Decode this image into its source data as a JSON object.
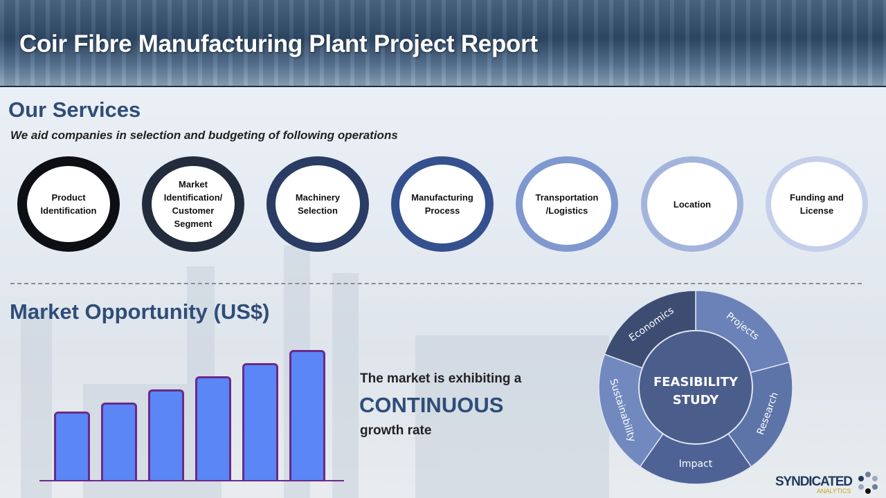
{
  "header": {
    "title": "Coir Fibre Manufacturing Plant Project Report"
  },
  "services": {
    "heading": "Our Services",
    "subtitle": "We aid companies in selection and budgeting of following operations",
    "items": [
      {
        "label": "Product Identification",
        "color": "#0d0f14"
      },
      {
        "label": "Market Identification/ Customer Segment",
        "color": "#232c3c"
      },
      {
        "label": "Machinery Selection",
        "color": "#2a3c64"
      },
      {
        "label": "Manufacturing Process",
        "color": "#34508f"
      },
      {
        "label": "Transportation /Logistics",
        "color": "#7f98cf"
      },
      {
        "label": "Location",
        "color": "#a3b4dc"
      },
      {
        "label": "Funding and License",
        "color": "#c3cfeb"
      }
    ]
  },
  "market": {
    "heading": "Market Opportunity (US$)",
    "line1": "The market is exhibiting a",
    "line2": "CONTINUOUS",
    "line3": "growth rate"
  },
  "chart_data": {
    "type": "bar",
    "relative_levels_percent": [
      53,
      60,
      70,
      80,
      90,
      100
    ],
    "bar_color": "#5b86f5",
    "outline_color": "#6a2a8a"
  },
  "feasibility": {
    "center": [
      "FEASIBILITY",
      "STUDY"
    ],
    "segments": [
      {
        "label": "Projects",
        "color": "#6a82b7"
      },
      {
        "label": "Research",
        "color": "#5d74a8"
      },
      {
        "label": "Impact",
        "color": "#4e6296"
      },
      {
        "label": "Sustainability",
        "color": "#7189be"
      },
      {
        "label": "Economics",
        "color": "#3d4d72"
      }
    ]
  },
  "logo": {
    "text": "SYNDICATED",
    "subtext": "ANALYTICS"
  }
}
